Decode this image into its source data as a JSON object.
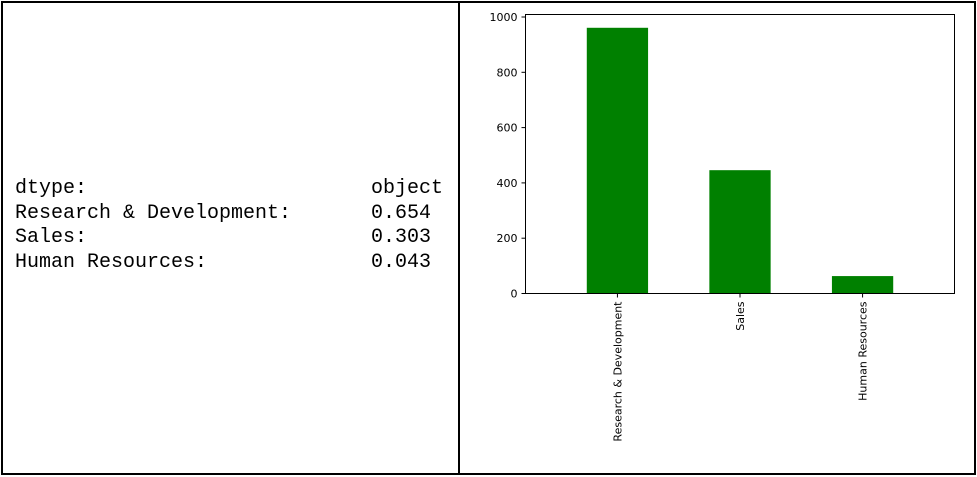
{
  "stats": {
    "rows": [
      {
        "key": "dtype:",
        "value": "object"
      },
      {
        "key": "Research & Development:",
        "value": "0.654"
      },
      {
        "key": "Sales:",
        "value": "0.303"
      },
      {
        "key": "Human Resources:",
        "value": "0.043"
      }
    ]
  },
  "chart_data": {
    "type": "bar",
    "categories": [
      "Research & Development",
      "Sales",
      "Human Resources"
    ],
    "values": [
      961,
      446,
      63
    ],
    "ylim": [
      0,
      1000
    ],
    "yticks": [
      0,
      200,
      400,
      600,
      800,
      1000
    ],
    "bar_color": "#008000",
    "grid": false,
    "legend": "none",
    "xtick_rotation": "vertical"
  }
}
